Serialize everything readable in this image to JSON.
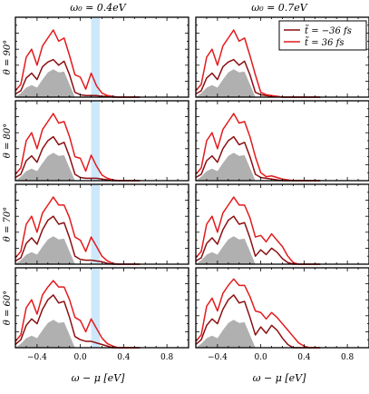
{
  "chart_data": {
    "type": "line",
    "column_titles": [
      "ω₀ = 0.4eV",
      "ω₀ = 0.7eV"
    ],
    "row_labels": [
      "θ = 90°",
      "θ = 80°",
      "θ = 70°",
      "θ = 60°"
    ],
    "xlabel": "ω − μ [eV]",
    "ylabel": "",
    "xlim": [
      -0.6,
      1.0
    ],
    "ylim": [
      0,
      1.0
    ],
    "x_ticks": [
      -0.4,
      0.0,
      0.4,
      0.8
    ],
    "x_tick_labels": [
      "−0.4",
      "0.0",
      "0.4",
      "0.8"
    ],
    "legend": {
      "placement": "top-right",
      "panel": "row 1, right column",
      "entries": [
        "t̃ = −36 fs",
        "t̃ = 36 fs"
      ]
    },
    "highlight_band": {
      "panels": "left column",
      "x_range": [
        0.1,
        0.18
      ],
      "color": "#cde8fb"
    },
    "colors": {
      "t_minus_36": "#8b0f12",
      "t_plus_36": "#e41a1c",
      "equilibrium": "#b0b0b0"
    },
    "x": [
      -0.6,
      -0.55,
      -0.5,
      -0.45,
      -0.4,
      -0.35,
      -0.3,
      -0.25,
      -0.2,
      -0.15,
      -0.1,
      -0.05,
      0.0,
      0.05,
      0.1,
      0.15,
      0.2,
      0.25,
      0.3,
      0.35,
      0.4,
      0.45,
      0.5,
      0.55
    ],
    "panels": [
      {
        "row": "θ = 90°",
        "col": "ω₀ = 0.4eV",
        "series": [
          {
            "name": "t̃ = −36 fs",
            "values": [
              0.04,
              0.08,
              0.24,
              0.3,
              0.22,
              0.38,
              0.44,
              0.47,
              0.4,
              0.45,
              0.28,
              0.06,
              0.03,
              0.02,
              0.02,
              0.02,
              0.01,
              0.01,
              0.0,
              0.0,
              0.0,
              0.0,
              0.0,
              0.0
            ]
          },
          {
            "name": "t̃ = 36 fs",
            "values": [
              0.08,
              0.16,
              0.5,
              0.6,
              0.4,
              0.64,
              0.74,
              0.84,
              0.7,
              0.74,
              0.52,
              0.28,
              0.25,
              0.1,
              0.3,
              0.14,
              0.05,
              0.02,
              0.01,
              0.0,
              0.0,
              0.0,
              0.0,
              0.0
            ]
          },
          {
            "name": "equilibrium",
            "values": [
              0.0,
              0.05,
              0.12,
              0.15,
              0.12,
              0.22,
              0.31,
              0.35,
              0.31,
              0.32,
              0.16,
              0.0,
              0.0,
              0.0,
              0.0,
              0.0,
              0.0,
              0.0,
              0.0,
              0.0,
              0.0,
              0.0,
              0.0,
              0.0
            ]
          }
        ]
      },
      {
        "row": "θ = 90°",
        "col": "ω₀ = 0.7eV",
        "series": [
          {
            "name": "t̃ = −36 fs",
            "values": [
              0.04,
              0.08,
              0.24,
              0.3,
              0.22,
              0.38,
              0.44,
              0.47,
              0.4,
              0.45,
              0.28,
              0.06,
              0.03,
              0.02,
              0.01,
              0.01,
              0.0,
              0.0,
              0.0,
              0.0,
              0.0,
              0.0,
              0.0,
              0.0
            ]
          },
          {
            "name": "t̃ = 36 fs",
            "values": [
              0.08,
              0.16,
              0.5,
              0.6,
              0.4,
              0.64,
              0.74,
              0.84,
              0.7,
              0.74,
              0.52,
              0.28,
              0.06,
              0.03,
              0.02,
              0.01,
              0.0,
              0.0,
              0.0,
              0.0,
              0.0,
              0.0,
              0.0,
              0.0
            ]
          },
          {
            "name": "equilibrium",
            "values": [
              0.0,
              0.05,
              0.12,
              0.15,
              0.12,
              0.22,
              0.31,
              0.35,
              0.31,
              0.32,
              0.16,
              0.0,
              0.0,
              0.0,
              0.0,
              0.0,
              0.0,
              0.0,
              0.0,
              0.0,
              0.0,
              0.0,
              0.0,
              0.0
            ]
          }
        ]
      },
      {
        "row": "θ = 80°",
        "col": "ω₀ = 0.4eV",
        "series": [
          {
            "name": "t̃ = −36 fs",
            "values": [
              0.04,
              0.08,
              0.25,
              0.31,
              0.23,
              0.4,
              0.5,
              0.55,
              0.45,
              0.48,
              0.3,
              0.08,
              0.04,
              0.03,
              0.03,
              0.03,
              0.02,
              0.01,
              0.0,
              0.0,
              0.0,
              0.0,
              0.0,
              0.0
            ]
          },
          {
            "name": "t̃ = 36 fs",
            "values": [
              0.08,
              0.16,
              0.5,
              0.6,
              0.4,
              0.64,
              0.74,
              0.84,
              0.72,
              0.74,
              0.55,
              0.3,
              0.28,
              0.12,
              0.32,
              0.18,
              0.07,
              0.03,
              0.01,
              0.0,
              0.0,
              0.0,
              0.0,
              0.0
            ]
          },
          {
            "name": "equilibrium",
            "values": [
              0.0,
              0.05,
              0.12,
              0.15,
              0.12,
              0.22,
              0.31,
              0.35,
              0.31,
              0.32,
              0.16,
              0.0,
              0.0,
              0.0,
              0.0,
              0.0,
              0.0,
              0.0,
              0.0,
              0.0,
              0.0,
              0.0,
              0.0,
              0.0
            ]
          }
        ]
      },
      {
        "row": "θ = 80°",
        "col": "ω₀ = 0.7eV",
        "series": [
          {
            "name": "t̃ = −36 fs",
            "values": [
              0.04,
              0.08,
              0.25,
              0.31,
              0.23,
              0.4,
              0.5,
              0.55,
              0.45,
              0.48,
              0.3,
              0.08,
              0.04,
              0.03,
              0.02,
              0.01,
              0.0,
              0.0,
              0.0,
              0.0,
              0.0,
              0.0,
              0.0,
              0.0
            ]
          },
          {
            "name": "t̃ = 36 fs",
            "values": [
              0.08,
              0.16,
              0.5,
              0.6,
              0.4,
              0.64,
              0.74,
              0.84,
              0.72,
              0.74,
              0.55,
              0.3,
              0.1,
              0.05,
              0.06,
              0.04,
              0.02,
              0.01,
              0.0,
              0.0,
              0.0,
              0.0,
              0.0,
              0.0
            ]
          },
          {
            "name": "equilibrium",
            "values": [
              0.0,
              0.05,
              0.12,
              0.15,
              0.12,
              0.22,
              0.31,
              0.35,
              0.31,
              0.32,
              0.16,
              0.0,
              0.0,
              0.0,
              0.0,
              0.0,
              0.0,
              0.0,
              0.0,
              0.0,
              0.0,
              0.0,
              0.0,
              0.0
            ]
          }
        ]
      },
      {
        "row": "θ = 70°",
        "col": "ω₀ = 0.4eV",
        "series": [
          {
            "name": "t̃ = −36 fs",
            "values": [
              0.04,
              0.08,
              0.26,
              0.33,
              0.25,
              0.43,
              0.55,
              0.6,
              0.5,
              0.52,
              0.33,
              0.1,
              0.06,
              0.05,
              0.05,
              0.04,
              0.03,
              0.01,
              0.0,
              0.0,
              0.0,
              0.0,
              0.0,
              0.0
            ]
          },
          {
            "name": "t̃ = 36 fs",
            "values": [
              0.08,
              0.16,
              0.5,
              0.6,
              0.4,
              0.64,
              0.74,
              0.84,
              0.74,
              0.74,
              0.58,
              0.34,
              0.3,
              0.16,
              0.34,
              0.22,
              0.1,
              0.04,
              0.01,
              0.0,
              0.0,
              0.0,
              0.0,
              0.0
            ]
          },
          {
            "name": "equilibrium",
            "values": [
              0.0,
              0.05,
              0.12,
              0.15,
              0.12,
              0.22,
              0.31,
              0.35,
              0.31,
              0.32,
              0.16,
              0.0,
              0.0,
              0.0,
              0.0,
              0.0,
              0.0,
              0.0,
              0.0,
              0.0,
              0.0,
              0.0,
              0.0,
              0.0
            ]
          }
        ]
      },
      {
        "row": "θ = 70°",
        "col": "ω₀ = 0.7eV",
        "series": [
          {
            "name": "t̃ = −36 fs",
            "values": [
              0.04,
              0.08,
              0.26,
              0.33,
              0.25,
              0.43,
              0.55,
              0.6,
              0.5,
              0.52,
              0.33,
              0.1,
              0.18,
              0.12,
              0.2,
              0.15,
              0.07,
              0.02,
              0.0,
              0.0,
              0.0,
              0.0,
              0.0,
              0.0
            ]
          },
          {
            "name": "t̃ = 36 fs",
            "values": [
              0.08,
              0.16,
              0.5,
              0.6,
              0.4,
              0.64,
              0.74,
              0.84,
              0.74,
              0.74,
              0.58,
              0.34,
              0.36,
              0.28,
              0.38,
              0.3,
              0.22,
              0.1,
              0.02,
              0.0,
              0.0,
              0.0,
              0.0,
              0.0
            ]
          },
          {
            "name": "equilibrium",
            "values": [
              0.0,
              0.05,
              0.12,
              0.15,
              0.12,
              0.22,
              0.31,
              0.35,
              0.31,
              0.32,
              0.16,
              0.0,
              0.0,
              0.0,
              0.0,
              0.0,
              0.0,
              0.0,
              0.0,
              0.0,
              0.0,
              0.0,
              0.0,
              0.0
            ]
          }
        ]
      },
      {
        "row": "θ = 60°",
        "col": "ω₀ = 0.4eV",
        "series": [
          {
            "name": "t̃ = −36 fs",
            "values": [
              0.04,
              0.1,
              0.28,
              0.36,
              0.3,
              0.48,
              0.6,
              0.66,
              0.56,
              0.58,
              0.38,
              0.14,
              0.1,
              0.08,
              0.08,
              0.06,
              0.04,
              0.02,
              0.0,
              0.0,
              0.0,
              0.0,
              0.0,
              0.0
            ]
          },
          {
            "name": "t̃ = 36 fs",
            "values": [
              0.08,
              0.16,
              0.5,
              0.6,
              0.42,
              0.66,
              0.76,
              0.84,
              0.76,
              0.76,
              0.6,
              0.38,
              0.34,
              0.2,
              0.36,
              0.24,
              0.12,
              0.05,
              0.02,
              0.0,
              0.0,
              0.0,
              0.0,
              0.0
            ]
          },
          {
            "name": "equilibrium",
            "values": [
              0.0,
              0.05,
              0.12,
              0.15,
              0.12,
              0.22,
              0.31,
              0.35,
              0.31,
              0.32,
              0.16,
              0.0,
              0.0,
              0.0,
              0.0,
              0.0,
              0.0,
              0.0,
              0.0,
              0.0,
              0.0,
              0.0,
              0.0,
              0.0
            ]
          }
        ]
      },
      {
        "row": "θ = 60°",
        "col": "ω₀ = 0.7eV",
        "series": [
          {
            "name": "t̃ = −36 fs",
            "values": [
              0.04,
              0.1,
              0.28,
              0.36,
              0.3,
              0.48,
              0.6,
              0.66,
              0.56,
              0.58,
              0.38,
              0.16,
              0.26,
              0.18,
              0.28,
              0.22,
              0.12,
              0.04,
              0.0,
              0.0,
              0.0,
              0.0,
              0.0,
              0.0
            ]
          },
          {
            "name": "t̃ = 36 fs",
            "values": [
              0.08,
              0.16,
              0.52,
              0.62,
              0.46,
              0.68,
              0.78,
              0.86,
              0.78,
              0.78,
              0.64,
              0.46,
              0.44,
              0.36,
              0.44,
              0.38,
              0.3,
              0.22,
              0.14,
              0.06,
              0.02,
              0.0,
              0.0,
              0.0
            ]
          },
          {
            "name": "equilibrium",
            "values": [
              0.0,
              0.05,
              0.12,
              0.15,
              0.12,
              0.22,
              0.31,
              0.35,
              0.31,
              0.32,
              0.16,
              0.0,
              0.0,
              0.0,
              0.0,
              0.0,
              0.0,
              0.0,
              0.0,
              0.0,
              0.0,
              0.0,
              0.0,
              0.0
            ]
          }
        ]
      }
    ]
  }
}
